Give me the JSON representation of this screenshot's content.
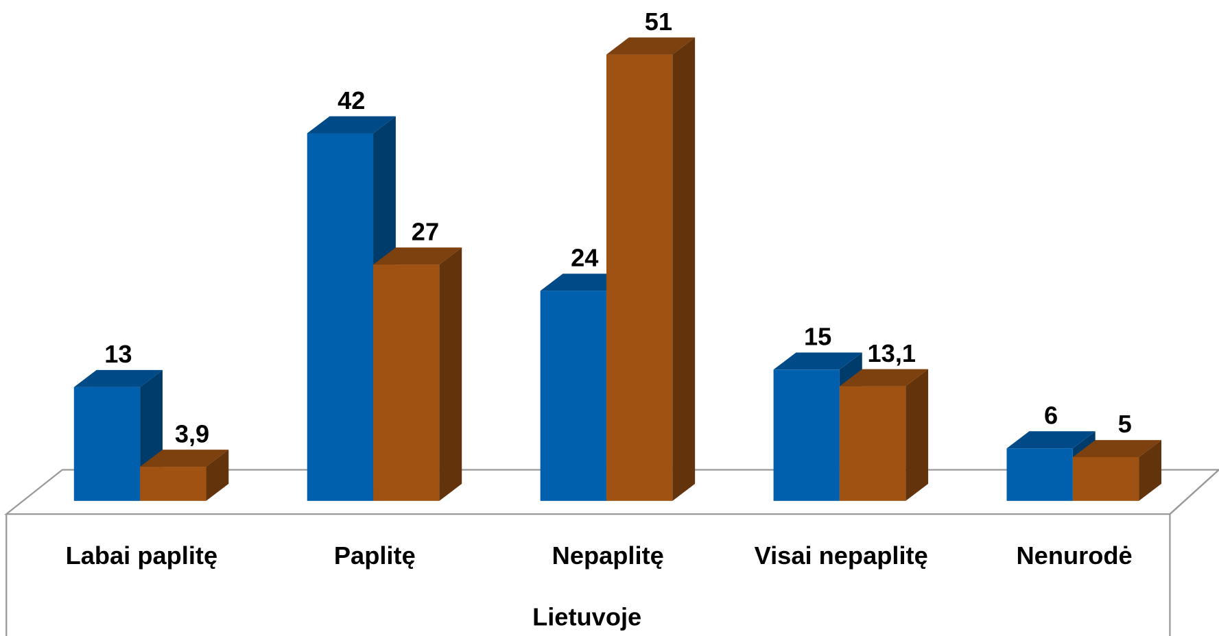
{
  "chart_data": {
    "type": "bar3d",
    "categories": [
      "Labai paplitę",
      "Paplitę",
      "Nepaplitę",
      "Visai nepaplitę",
      "Nenurodė"
    ],
    "x_label": "Lietuvoje",
    "series": [
      {
        "color": "#0060ad",
        "values": [
          13,
          42,
          24,
          15,
          6
        ]
      },
      {
        "color": "#a05213",
        "values": [
          3.9,
          27,
          51,
          13.1,
          5
        ],
        "value_labels": [
          "3,9",
          "27",
          "51",
          "13,1",
          "5"
        ]
      }
    ]
  }
}
